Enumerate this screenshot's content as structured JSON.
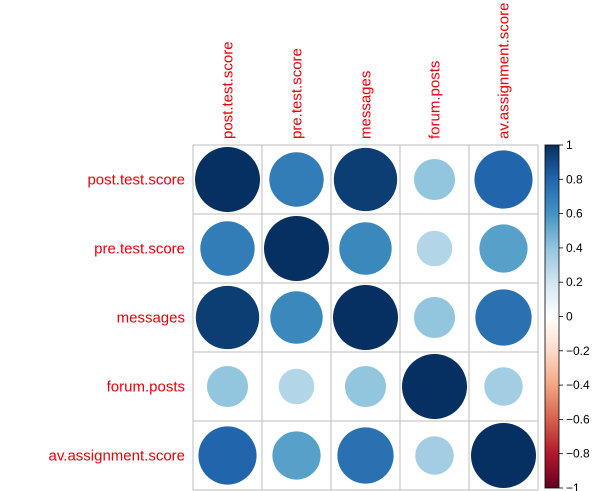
{
  "chart_data": {
    "type": "heatmap",
    "style": "circle",
    "variables": [
      "post.test.score",
      "pre.test.score",
      "messages",
      "forum.posts",
      "av.assignment.score"
    ],
    "matrix": [
      [
        1.0,
        0.7,
        0.95,
        0.4,
        0.8
      ],
      [
        0.7,
        1.0,
        0.65,
        0.3,
        0.55
      ],
      [
        0.95,
        0.65,
        1.0,
        0.4,
        0.75
      ],
      [
        0.4,
        0.3,
        0.4,
        1.0,
        0.35
      ],
      [
        0.8,
        0.55,
        0.75,
        0.35,
        1.0
      ]
    ],
    "colorbar": {
      "range": [
        -1,
        1
      ],
      "ticks": [
        "1",
        "0.8",
        "0.6",
        "0.4",
        "0.2",
        "0",
        "−0.2",
        "−0.4",
        "−0.6",
        "−0.8",
        "−1"
      ],
      "tick_values": [
        1,
        0.8,
        0.6,
        0.4,
        0.2,
        0,
        -0.2,
        -0.4,
        -0.6,
        -0.8,
        -1
      ],
      "colors_high_to_low": [
        "#053061",
        "#2166AC",
        "#4393C3",
        "#92C5DE",
        "#D1E5F0",
        "#FFFFFF",
        "#FDDBC7",
        "#F4A582",
        "#D6604D",
        "#B2182B",
        "#67001F"
      ]
    },
    "label_color": "#E8000B",
    "grid": true,
    "legend": "right"
  }
}
